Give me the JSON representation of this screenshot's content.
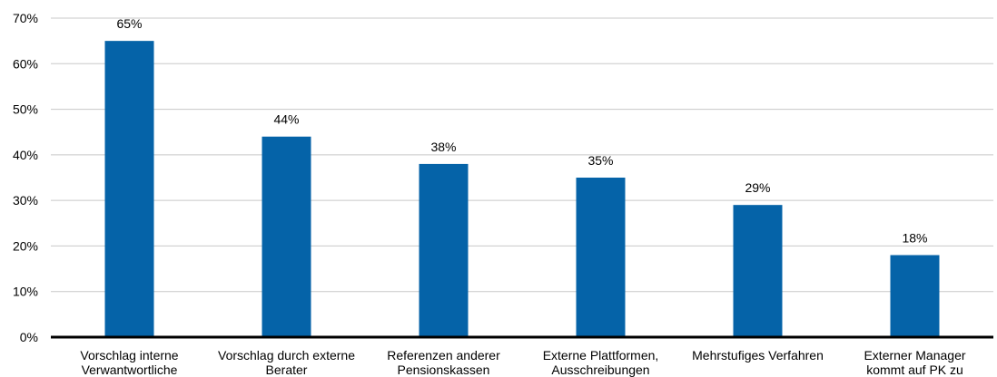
{
  "chart_data": {
    "type": "bar",
    "categories": [
      [
        "Vorschlag interne",
        "Verwantwortliche"
      ],
      [
        "Vorschlag durch externe",
        "Berater"
      ],
      [
        "Referenzen anderer",
        "Pensionskassen"
      ],
      [
        "Externe Plattformen,",
        "Ausschreibungen"
      ],
      [
        "Mehrstufiges Verfahren"
      ],
      [
        "Externer Manager",
        "kommt auf PK zu"
      ]
    ],
    "values": [
      65,
      44,
      38,
      35,
      29,
      18
    ],
    "value_labels": [
      "65%",
      "44%",
      "38%",
      "35%",
      "29%",
      "18%"
    ],
    "y_ticks": [
      {
        "v": 0,
        "label": "0%"
      },
      {
        "v": 10,
        "label": "10%"
      },
      {
        "v": 20,
        "label": "20%"
      },
      {
        "v": 30,
        "label": "30%"
      },
      {
        "v": 40,
        "label": "40%"
      },
      {
        "v": 50,
        "label": "50%"
      },
      {
        "v": 60,
        "label": "60%"
      },
      {
        "v": 70,
        "label": "70%"
      }
    ],
    "ylim": [
      0,
      70
    ],
    "grid": true,
    "bar_color": "#0563a8",
    "title": "",
    "xlabel": "",
    "ylabel": ""
  }
}
